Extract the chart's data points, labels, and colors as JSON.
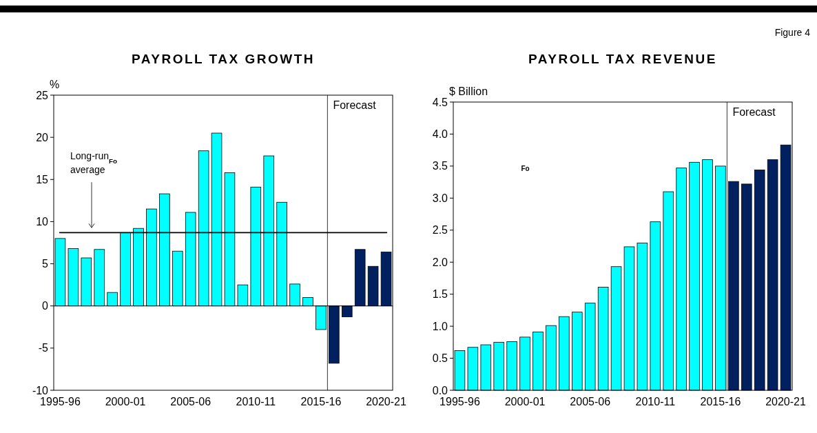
{
  "chart_data": [
    {
      "type": "bar",
      "title": "PAYROLL TAX GROWTH",
      "ylabel": "%",
      "categories": [
        "1995-96",
        null,
        null,
        null,
        null,
        "2000-01",
        null,
        null,
        null,
        null,
        "2005-06",
        null,
        null,
        null,
        null,
        "2010-11",
        null,
        null,
        null,
        null,
        "2015-16",
        null,
        null,
        null,
        null,
        "2020-21"
      ],
      "values": [
        8.0,
        6.8,
        5.7,
        6.7,
        1.6,
        8.7,
        9.2,
        11.5,
        13.3,
        6.5,
        11.1,
        18.4,
        20.5,
        15.8,
        2.5,
        14.1,
        17.8,
        12.3,
        2.6,
        1.0,
        -2.8,
        -6.8,
        -1.3,
        6.7,
        4.7,
        6.4
      ],
      "colors": [
        "#00ffff",
        "#00ffff",
        "#00ffff",
        "#00ffff",
        "#00ffff",
        "#00ffff",
        "#00ffff",
        "#00ffff",
        "#00ffff",
        "#00ffff",
        "#00ffff",
        "#00ffff",
        "#00ffff",
        "#00ffff",
        "#00ffff",
        "#00ffff",
        "#00ffff",
        "#00ffff",
        "#00ffff",
        "#00ffff",
        "#00ffff",
        "#002060",
        "#002060",
        "#002060",
        "#002060",
        "#002060"
      ],
      "ylim": [
        -10,
        25
      ],
      "yticks": [
        -10,
        -5,
        0,
        5,
        10,
        15,
        20,
        25
      ],
      "ref_lines": [
        {
          "axis": "y",
          "value": 8.7,
          "label": "Long-run$_{Fo}$ average",
          "color": "#000000"
        }
      ],
      "annotations": [
        "Forecast"
      ]
    },
    {
      "type": "bar",
      "title": "PAYROLL TAX REVENUE",
      "ylabel": "$ Billion",
      "categories": [
        "1995-96",
        null,
        null,
        null,
        null,
        "2000-01",
        null,
        null,
        null,
        null,
        "2005-06",
        null,
        null,
        null,
        null,
        "2010-11",
        null,
        null,
        null,
        null,
        "2015-16",
        null,
        null,
        null,
        null,
        "2020-21"
      ],
      "values": [
        0.62,
        0.67,
        0.71,
        0.75,
        0.76,
        0.83,
        0.91,
        1.01,
        1.15,
        1.22,
        1.36,
        1.61,
        1.93,
        2.24,
        2.3,
        2.63,
        3.1,
        3.47,
        3.56,
        3.6,
        3.5,
        3.26,
        3.22,
        3.44,
        3.6,
        3.83
      ],
      "colors": [
        "#00ffff",
        "#00ffff",
        "#00ffff",
        "#00ffff",
        "#00ffff",
        "#00ffff",
        "#00ffff",
        "#00ffff",
        "#00ffff",
        "#00ffff",
        "#00ffff",
        "#00ffff",
        "#00ffff",
        "#00ffff",
        "#00ffff",
        "#00ffff",
        "#00ffff",
        "#00ffff",
        "#00ffff",
        "#00ffff",
        "#00ffff",
        "#002060",
        "#002060",
        "#002060",
        "#002060",
        "#002060"
      ],
      "ylim": [
        0,
        4.5
      ],
      "yticks": [
        {
          "value": 0,
          "label": "0.0"
        },
        {
          "value": 0.5,
          "label": "0.5"
        },
        {
          "value": 1,
          "label": "1.0"
        },
        {
          "value": 1.5,
          "label": "1.5"
        },
        {
          "value": 2,
          "label": "2.0"
        },
        {
          "value": 2.5,
          "label": "2.5"
        },
        {
          "value": 3,
          "label": "3.0"
        },
        {
          "value": 3.5,
          "label": "3.5"
        },
        {
          "value": 4,
          "label": "4.0"
        },
        {
          "value": 4.5,
          "label": "4.5"
        }
      ],
      "annotations": [
        "Forecast",
        "Fo",
        "Figure 4"
      ]
    }
  ]
}
